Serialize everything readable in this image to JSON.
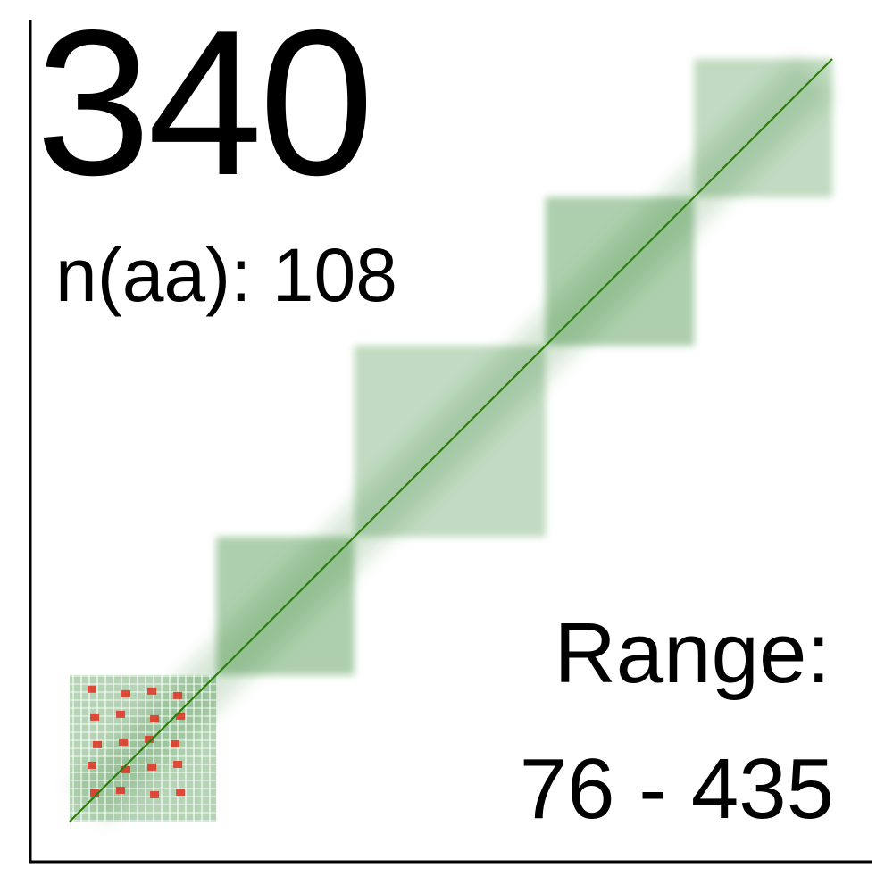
{
  "header": {
    "count": "340",
    "naa_label": "n(aa): 108"
  },
  "footer": {
    "range_title": "Range:",
    "range_value": "76 - 435"
  },
  "colors": {
    "contact": "#1f7a1f",
    "diagonal": "#2d7a12",
    "highlight": "#e03020",
    "axis": "#000000",
    "background": "#ffffff"
  },
  "chart_data": {
    "type": "heatmap",
    "description_shown": "contact map along residue diagonal",
    "x_range": [
      76,
      435
    ],
    "y_range": [
      76,
      435
    ],
    "title": "",
    "xlabel": "",
    "ylabel": "",
    "grid": false,
    "legend": "none",
    "regions": [
      {
        "name": "red-block",
        "x_start": 76,
        "x_end": 145,
        "y_start": 76,
        "y_end": 145,
        "color": "highlight"
      },
      {
        "name": "band-1",
        "x_start": 145,
        "x_end": 210,
        "y_start": 145,
        "y_end": 210,
        "color": "contact"
      },
      {
        "name": "band-2",
        "x_start": 210,
        "x_end": 300,
        "y_start": 210,
        "y_end": 300,
        "color": "contact"
      },
      {
        "name": "band-3",
        "x_start": 300,
        "x_end": 370,
        "y_start": 300,
        "y_end": 370,
        "color": "contact"
      },
      {
        "name": "band-4",
        "x_start": 370,
        "x_end": 435,
        "y_start": 370,
        "y_end": 435,
        "color": "contact"
      }
    ]
  }
}
